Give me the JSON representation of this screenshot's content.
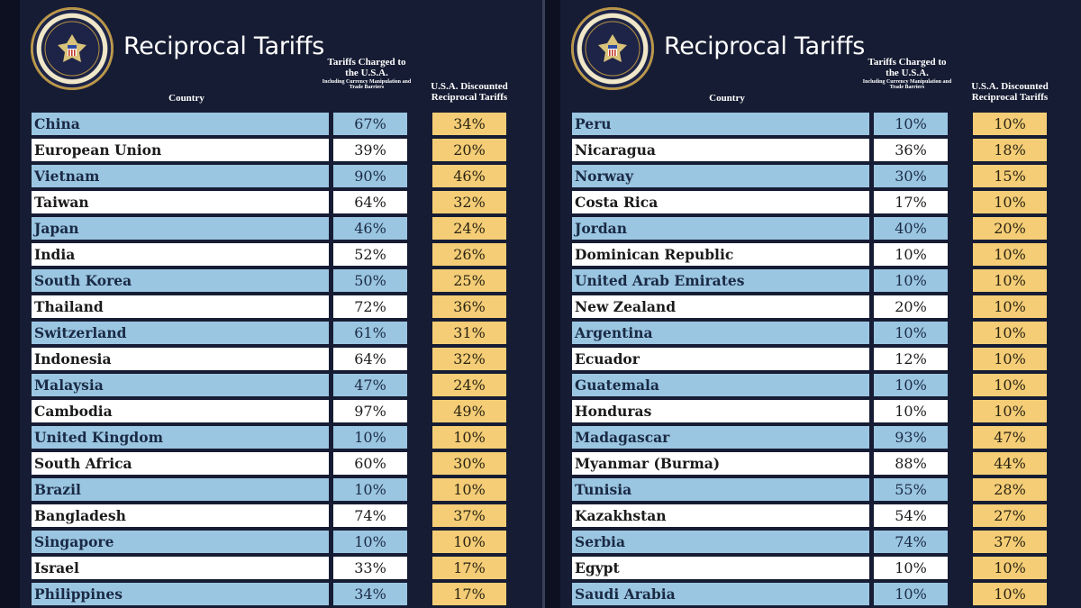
{
  "panels": [
    {
      "title": "Reciprocal Tariffs",
      "seal_text": "SEAL OF THE PRESIDENT OF THE UNITED STATES",
      "headers": {
        "country": "Country",
        "charged": "Tariffs Charged to the U.S.A.",
        "charged_sub": "Including Currency Manipulation and Trade Barriers",
        "discounted": "U.S.A. Discounted Reciprocal Tariffs"
      },
      "rows": [
        {
          "country": "China",
          "charged": "67%",
          "discounted": "34%"
        },
        {
          "country": "European Union",
          "charged": "39%",
          "discounted": "20%"
        },
        {
          "country": "Vietnam",
          "charged": "90%",
          "discounted": "46%"
        },
        {
          "country": "Taiwan",
          "charged": "64%",
          "discounted": "32%"
        },
        {
          "country": "Japan",
          "charged": "46%",
          "discounted": "24%"
        },
        {
          "country": "India",
          "charged": "52%",
          "discounted": "26%"
        },
        {
          "country": "South Korea",
          "charged": "50%",
          "discounted": "25%"
        },
        {
          "country": "Thailand",
          "charged": "72%",
          "discounted": "36%"
        },
        {
          "country": "Switzerland",
          "charged": "61%",
          "discounted": "31%"
        },
        {
          "country": "Indonesia",
          "charged": "64%",
          "discounted": "32%"
        },
        {
          "country": "Malaysia",
          "charged": "47%",
          "discounted": "24%"
        },
        {
          "country": "Cambodia",
          "charged": "97%",
          "discounted": "49%"
        },
        {
          "country": "United Kingdom",
          "charged": "10%",
          "discounted": "10%"
        },
        {
          "country": "South Africa",
          "charged": "60%",
          "discounted": "30%"
        },
        {
          "country": "Brazil",
          "charged": "10%",
          "discounted": "10%"
        },
        {
          "country": "Bangladesh",
          "charged": "74%",
          "discounted": "37%"
        },
        {
          "country": "Singapore",
          "charged": "10%",
          "discounted": "10%"
        },
        {
          "country": "Israel",
          "charged": "33%",
          "discounted": "17%"
        },
        {
          "country": "Philippines",
          "charged": "34%",
          "discounted": "17%"
        }
      ]
    },
    {
      "title": "Reciprocal Tariffs",
      "seal_text": "SEAL OF THE PRESIDENT OF THE UNITED STATES",
      "headers": {
        "country": "Country",
        "charged": "Tariffs Charged to the U.S.A.",
        "charged_sub": "Including Currency Manipulation and Trade Barriers",
        "discounted": "U.S.A. Discounted Reciprocal Tariffs"
      },
      "rows": [
        {
          "country": "Peru",
          "charged": "10%",
          "discounted": "10%"
        },
        {
          "country": "Nicaragua",
          "charged": "36%",
          "discounted": "18%"
        },
        {
          "country": "Norway",
          "charged": "30%",
          "discounted": "15%"
        },
        {
          "country": "Costa Rica",
          "charged": "17%",
          "discounted": "10%"
        },
        {
          "country": "Jordan",
          "charged": "40%",
          "discounted": "20%"
        },
        {
          "country": "Dominican Republic",
          "charged": "10%",
          "discounted": "10%"
        },
        {
          "country": "United Arab Emirates",
          "charged": "10%",
          "discounted": "10%"
        },
        {
          "country": "New Zealand",
          "charged": "20%",
          "discounted": "10%"
        },
        {
          "country": "Argentina",
          "charged": "10%",
          "discounted": "10%"
        },
        {
          "country": "Ecuador",
          "charged": "12%",
          "discounted": "10%"
        },
        {
          "country": "Guatemala",
          "charged": "10%",
          "discounted": "10%"
        },
        {
          "country": "Honduras",
          "charged": "10%",
          "discounted": "10%"
        },
        {
          "country": "Madagascar",
          "charged": "93%",
          "discounted": "47%"
        },
        {
          "country": "Myanmar (Burma)",
          "charged": "88%",
          "discounted": "44%"
        },
        {
          "country": "Tunisia",
          "charged": "55%",
          "discounted": "28%"
        },
        {
          "country": "Kazakhstan",
          "charged": "54%",
          "discounted": "27%"
        },
        {
          "country": "Serbia",
          "charged": "74%",
          "discounted": "37%"
        },
        {
          "country": "Egypt",
          "charged": "10%",
          "discounted": "10%"
        },
        {
          "country": "Saudi Arabia",
          "charged": "10%",
          "discounted": "10%"
        }
      ]
    }
  ]
}
